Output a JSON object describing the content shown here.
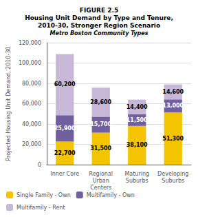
{
  "chart_data": {
    "type": "bar",
    "title": "FIGURE 2.5\nHousing Unit Demand by Type and Tenure,\n2010-30, Stronger Region Scenario",
    "subtitle": "Metro Boston Community Types",
    "categories": [
      "Inner Core",
      "Regional\nUrban\nCenters",
      "Maturing\nSuburbs",
      "Developing\nSuburbs"
    ],
    "series": [
      {
        "name": "Single Family - Own",
        "color": "#F5C400",
        "values": [
          22700,
          31500,
          38100,
          51300
        ],
        "value_labels": [
          "22,700",
          "31,500",
          "38,100",
          "51,300"
        ]
      },
      {
        "name": "Multifamily - Own",
        "color": "#7060A0",
        "values": [
          25900,
          15700,
          11500,
          13000
        ],
        "value_labels": [
          "25,900",
          "15,700",
          "11,500",
          "13,000"
        ]
      },
      {
        "name": "Multifamily - Rent",
        "color": "#C8B8D8",
        "values": [
          60200,
          28600,
          14400,
          14600
        ],
        "value_labels": [
          "60,200",
          "28,600",
          "14,400",
          "14,600"
        ]
      }
    ],
    "ylabel": "Projected Housing Unit Demand, 2010-30",
    "ylim": [
      0,
      120000
    ],
    "yticks": [
      0,
      {
        "value": 20000,
        "label": "20,000"
      },
      {
        "value": 40000,
        "label": "40,000"
      },
      {
        "value": 60000,
        "label": "60,000"
      },
      {
        "value": 80000,
        "label": "80,000"
      },
      {
        "value": 100000,
        "label": "100,000"
      },
      {
        "value": 120000,
        "label": "120,000"
      }
    ],
    "stacked": true,
    "data_labels": true,
    "grid": true,
    "legend": "lower left"
  }
}
